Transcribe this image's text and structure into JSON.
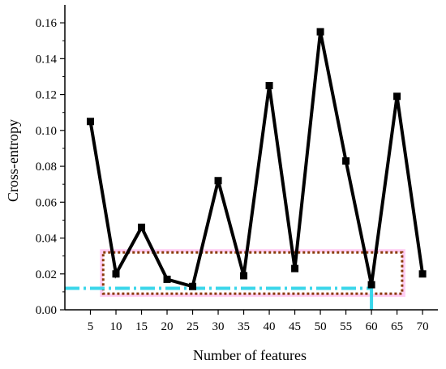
{
  "chart_data": {
    "type": "line",
    "xlabel": "Number of features",
    "ylabel": "Cross-entropy",
    "x": [
      5,
      10,
      15,
      20,
      25,
      30,
      35,
      40,
      45,
      50,
      55,
      60,
      65,
      70
    ],
    "series": [
      {
        "values": [
          0.105,
          0.02,
          0.046,
          0.017,
          0.013,
          0.072,
          0.019,
          0.125,
          0.023,
          0.155,
          0.083,
          0.014,
          0.119,
          0.02
        ],
        "color": "#000000",
        "marker": "square"
      }
    ],
    "xticks": [
      "5",
      "10",
      "15",
      "20",
      "25",
      "30",
      "35",
      "40",
      "45",
      "50",
      "55",
      "60",
      "65",
      "70"
    ],
    "yticks": [
      "0.00",
      "0.02",
      "0.04",
      "0.06",
      "0.08",
      "0.10",
      "0.12",
      "0.14",
      "0.16"
    ],
    "xlim": [
      0,
      73
    ],
    "ylim": [
      0,
      0.17
    ],
    "grid": false,
    "annotations": {
      "highlight_box": {
        "x_range": [
          7.5,
          66
        ],
        "y_range": [
          0.009,
          0.032
        ],
        "colors": [
          "#8b3a0a",
          "#ffc0f0"
        ]
      },
      "reference_line": {
        "y": 0.012,
        "x_range": [
          0,
          60
        ],
        "color": "#3ad6ea",
        "style": "dash-dot"
      }
    }
  }
}
